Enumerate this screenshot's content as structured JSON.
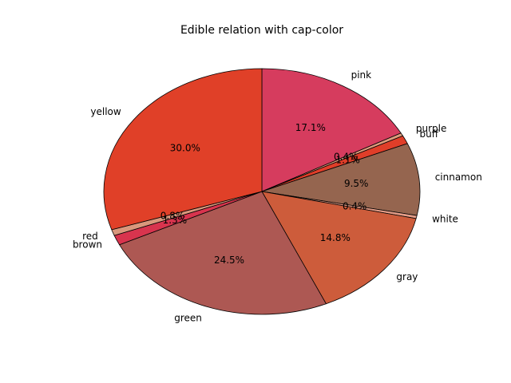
{
  "chart_data": {
    "type": "pie",
    "title": "Edible relation with cap-color",
    "slices": [
      {
        "label": "pink",
        "value": 17.1,
        "pct_text": "17.1%",
        "color": "#d63c5e"
      },
      {
        "label": "purple",
        "value": 0.4,
        "pct_text": "0.4%",
        "color": "#dd9a7c"
      },
      {
        "label": "buff",
        "value": 1.1,
        "pct_text": "1.1%",
        "color": "#e03e29"
      },
      {
        "label": "cinnamon",
        "value": 9.5,
        "pct_text": "9.5%",
        "color": "#95654f"
      },
      {
        "label": "white",
        "value": 0.4,
        "pct_text": "0.4%",
        "color": "#e29b86"
      },
      {
        "label": "gray",
        "value": 14.8,
        "pct_text": "14.8%",
        "color": "#cd5c3b"
      },
      {
        "label": "green",
        "value": 24.5,
        "pct_text": "24.5%",
        "color": "#ad5853"
      },
      {
        "label": "brown",
        "value": 1.3,
        "pct_text": "1.3%",
        "color": "#d8344e"
      },
      {
        "label": "red",
        "value": 0.8,
        "pct_text": "0.8%",
        "color": "#d9977c"
      },
      {
        "label": "yellow",
        "value": 30.0,
        "pct_text": "30.0%",
        "color": "#e04028"
      }
    ],
    "start_angle_deg": 90,
    "direction": "clockwise"
  }
}
